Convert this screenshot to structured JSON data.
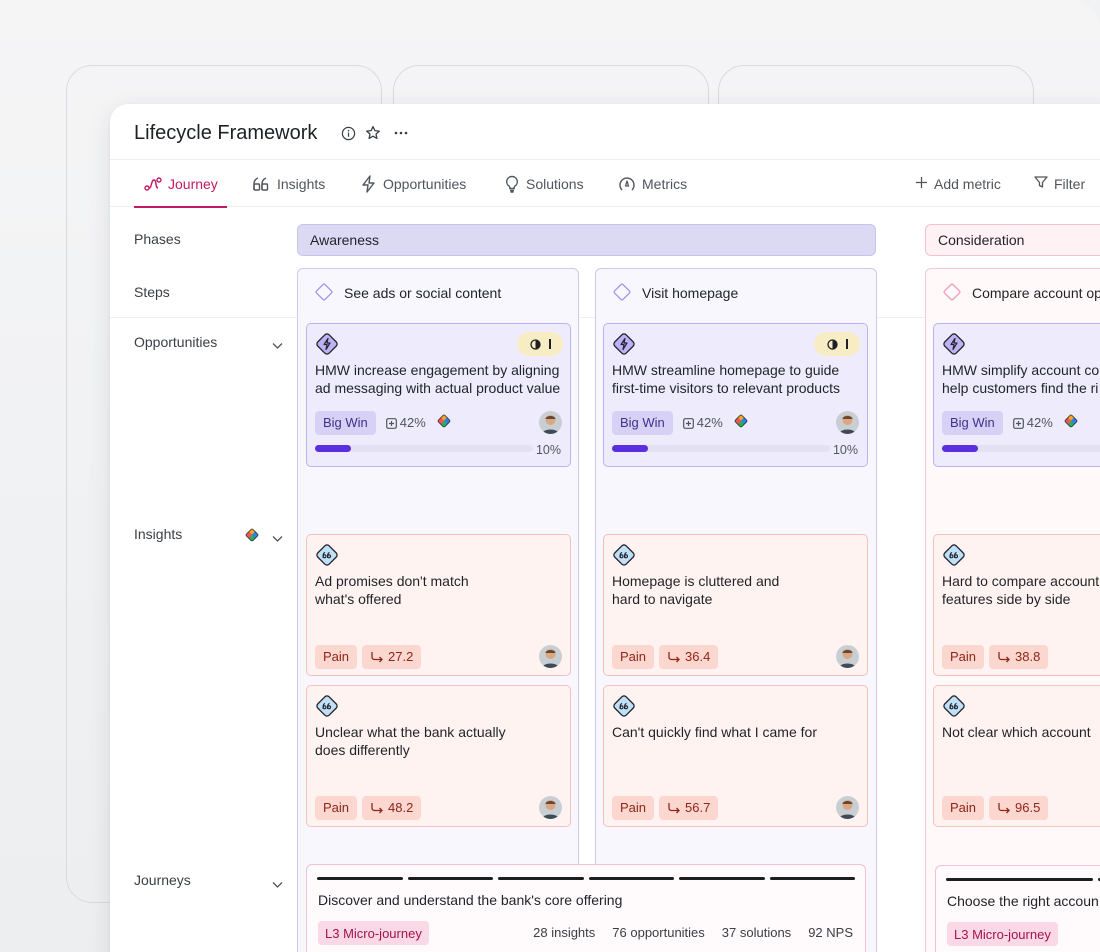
{
  "app": {
    "title": "Lifecycle Framework",
    "icons": [
      "info-icon",
      "star-icon",
      "more-icon"
    ]
  },
  "tabs": [
    {
      "label": "Journey",
      "icon": "journey-icon",
      "active": true
    },
    {
      "label": "Insights",
      "icon": "quote-icon",
      "active": false
    },
    {
      "label": "Opportunities",
      "icon": "bolt-icon",
      "active": false
    },
    {
      "label": "Solutions",
      "icon": "lightbulb-icon",
      "active": false
    },
    {
      "label": "Metrics",
      "icon": "gauge-icon",
      "active": false
    }
  ],
  "actions": {
    "add_metric": "Add metric",
    "filter": "Filter"
  },
  "rows": {
    "phases": "Phases",
    "steps": "Steps",
    "opportunities": "Opportunities",
    "insights": "Insights",
    "journeys": "Journeys"
  },
  "phases": [
    {
      "label": "Awareness",
      "color": "#dcd9f4"
    },
    {
      "label": "Consideration",
      "color": "#fff1f4"
    }
  ],
  "steps": [
    {
      "label": "See ads or social content",
      "opportunity": {
        "text": "HMW increase engagement by aligning\nad messaging with actual product value",
        "tag": "Big Win",
        "impact": "42%",
        "progress": 0.1,
        "progress_label": "10%"
      },
      "insights": [
        {
          "text": "Ad promises don't match\nwhat's offered",
          "tag": "Pain",
          "score": "27.2"
        },
        {
          "text": "Unclear what the bank actually\ndoes differently",
          "tag": "Pain",
          "score": "48.2"
        }
      ]
    },
    {
      "label": "Visit homepage",
      "opportunity": {
        "text": "HMW streamline homepage to guide\nfirst-time visitors to relevant products",
        "tag": "Big Win",
        "impact": "42%",
        "progress": 0.1,
        "progress_label": "10%"
      },
      "insights": [
        {
          "text": "Homepage is cluttered and\nhard to navigate",
          "tag": "Pain",
          "score": "36.4"
        },
        {
          "text": "Can't quickly find what I came for",
          "tag": "Pain",
          "score": "56.7"
        }
      ]
    },
    {
      "label": "Compare account op",
      "opportunity": {
        "text": "HMW simplify account co\nhelp customers find the ri",
        "tag": "Big Win",
        "impact": "42%",
        "progress": 0.1,
        "progress_label": ""
      },
      "insights": [
        {
          "text": "Hard to compare account\nfeatures side by side",
          "tag": "Pain",
          "score": "38.8"
        },
        {
          "text": "Not clear which account",
          "tag": "Pain",
          "score": "96.5"
        }
      ]
    }
  ],
  "journeys": [
    {
      "title": "Discover and understand the bank's core offering",
      "tag": "L3 Micro-journey",
      "insights": "28 insights",
      "opportunities": "76 opportunities",
      "solutions": "37 solutions",
      "nps": "92 NPS"
    },
    {
      "title": "Choose the right accoun",
      "tag": "L3 Micro-journey"
    }
  ]
}
